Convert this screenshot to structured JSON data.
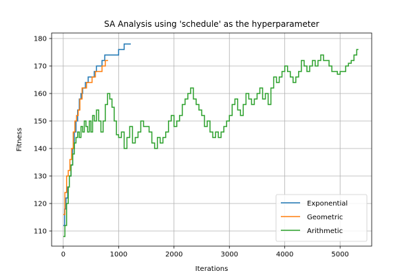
{
  "chart_data": {
    "type": "line",
    "title": "SA Analysis using 'schedule' as the hyperparameter",
    "xlabel": "Iterations",
    "ylabel": "Fitness",
    "xlim": [
      -210,
      5570
    ],
    "ylim": [
      104.5,
      182
    ],
    "grid": true,
    "legend_position": "bottom-right",
    "x_ticks": [
      0,
      1000,
      2000,
      3000,
      4000,
      5000
    ],
    "y_ticks": [
      110,
      120,
      130,
      140,
      150,
      160,
      170,
      180
    ],
    "series": [
      {
        "name": "Exponential",
        "color": "#1f77b4",
        "points": [
          [
            0,
            112
          ],
          [
            25,
            118
          ],
          [
            50,
            122
          ],
          [
            80,
            126
          ],
          [
            110,
            130
          ],
          [
            140,
            134
          ],
          [
            170,
            140
          ],
          [
            200,
            146
          ],
          [
            230,
            150
          ],
          [
            260,
            154
          ],
          [
            290,
            158
          ],
          [
            320,
            160
          ],
          [
            350,
            162
          ],
          [
            400,
            164
          ],
          [
            450,
            166
          ],
          [
            500,
            166
          ],
          [
            560,
            168
          ],
          [
            600,
            170
          ],
          [
            650,
            170
          ],
          [
            700,
            172
          ],
          [
            750,
            174
          ],
          [
            800,
            174
          ],
          [
            950,
            174
          ],
          [
            1000,
            176
          ],
          [
            1100,
            178
          ],
          [
            1220,
            178
          ]
        ]
      },
      {
        "name": "Geometric",
        "color": "#ff7f0e",
        "points": [
          [
            0,
            116
          ],
          [
            30,
            124
          ],
          [
            60,
            130
          ],
          [
            90,
            132
          ],
          [
            120,
            136
          ],
          [
            150,
            140
          ],
          [
            180,
            146
          ],
          [
            210,
            150
          ],
          [
            240,
            152
          ],
          [
            270,
            154
          ],
          [
            300,
            158
          ],
          [
            340,
            162
          ],
          [
            380,
            162
          ],
          [
            420,
            164
          ],
          [
            470,
            164
          ],
          [
            520,
            166
          ],
          [
            580,
            168
          ],
          [
            650,
            168
          ],
          [
            700,
            170
          ],
          [
            760,
            172
          ],
          [
            810,
            172
          ]
        ]
      },
      {
        "name": "Arithmetic",
        "color": "#2ca02c",
        "points": [
          [
            0,
            108
          ],
          [
            30,
            112
          ],
          [
            60,
            120
          ],
          [
            90,
            126
          ],
          [
            110,
            130
          ],
          [
            140,
            134
          ],
          [
            170,
            138
          ],
          [
            200,
            142
          ],
          [
            230,
            144
          ],
          [
            260,
            146
          ],
          [
            290,
            144
          ],
          [
            320,
            148
          ],
          [
            350,
            146
          ],
          [
            380,
            150
          ],
          [
            410,
            148
          ],
          [
            440,
            146
          ],
          [
            470,
            150
          ],
          [
            500,
            146
          ],
          [
            530,
            152
          ],
          [
            560,
            150
          ],
          [
            600,
            154
          ],
          [
            640,
            150
          ],
          [
            680,
            146
          ],
          [
            720,
            150
          ],
          [
            760,
            156
          ],
          [
            800,
            160
          ],
          [
            840,
            158
          ],
          [
            880,
            155
          ],
          [
            920,
            150
          ],
          [
            960,
            145
          ],
          [
            1000,
            144
          ],
          [
            1050,
            146
          ],
          [
            1100,
            140
          ],
          [
            1150,
            144
          ],
          [
            1200,
            148
          ],
          [
            1250,
            142
          ],
          [
            1300,
            144
          ],
          [
            1350,
            146
          ],
          [
            1400,
            150
          ],
          [
            1450,
            148
          ],
          [
            1500,
            148
          ],
          [
            1550,
            146
          ],
          [
            1600,
            142
          ],
          [
            1650,
            140
          ],
          [
            1700,
            144
          ],
          [
            1750,
            142
          ],
          [
            1800,
            144
          ],
          [
            1850,
            146
          ],
          [
            1900,
            150
          ],
          [
            1950,
            152
          ],
          [
            2000,
            148
          ],
          [
            2050,
            150
          ],
          [
            2100,
            152
          ],
          [
            2150,
            156
          ],
          [
            2200,
            158
          ],
          [
            2250,
            160
          ],
          [
            2300,
            162
          ],
          [
            2350,
            158
          ],
          [
            2400,
            156
          ],
          [
            2450,
            154
          ],
          [
            2500,
            152
          ],
          [
            2550,
            148
          ],
          [
            2600,
            150
          ],
          [
            2650,
            146
          ],
          [
            2700,
            144
          ],
          [
            2750,
            146
          ],
          [
            2800,
            144
          ],
          [
            2850,
            146
          ],
          [
            2900,
            148
          ],
          [
            2950,
            150
          ],
          [
            3000,
            152
          ],
          [
            3050,
            156
          ],
          [
            3100,
            158
          ],
          [
            3150,
            154
          ],
          [
            3200,
            152
          ],
          [
            3250,
            156
          ],
          [
            3300,
            160
          ],
          [
            3350,
            158
          ],
          [
            3400,
            156
          ],
          [
            3450,
            158
          ],
          [
            3500,
            160
          ],
          [
            3550,
            162
          ],
          [
            3600,
            158
          ],
          [
            3650,
            160
          ],
          [
            3700,
            156
          ],
          [
            3750,
            162
          ],
          [
            3800,
            166
          ],
          [
            3850,
            164
          ],
          [
            3900,
            166
          ],
          [
            3950,
            168
          ],
          [
            4000,
            170
          ],
          [
            4050,
            168
          ],
          [
            4100,
            166
          ],
          [
            4150,
            164
          ],
          [
            4200,
            166
          ],
          [
            4250,
            168
          ],
          [
            4300,
            172
          ],
          [
            4350,
            170
          ],
          [
            4400,
            168
          ],
          [
            4450,
            170
          ],
          [
            4500,
            172
          ],
          [
            4550,
            170
          ],
          [
            4600,
            172
          ],
          [
            4650,
            174
          ],
          [
            4700,
            172
          ],
          [
            4750,
            172
          ],
          [
            4800,
            170
          ],
          [
            4850,
            168
          ],
          [
            4900,
            168
          ],
          [
            4950,
            167
          ],
          [
            5000,
            168
          ],
          [
            5050,
            168
          ],
          [
            5100,
            170
          ],
          [
            5150,
            171
          ],
          [
            5200,
            172
          ],
          [
            5250,
            174
          ],
          [
            5300,
            176
          ],
          [
            5330,
            176
          ]
        ]
      }
    ]
  }
}
